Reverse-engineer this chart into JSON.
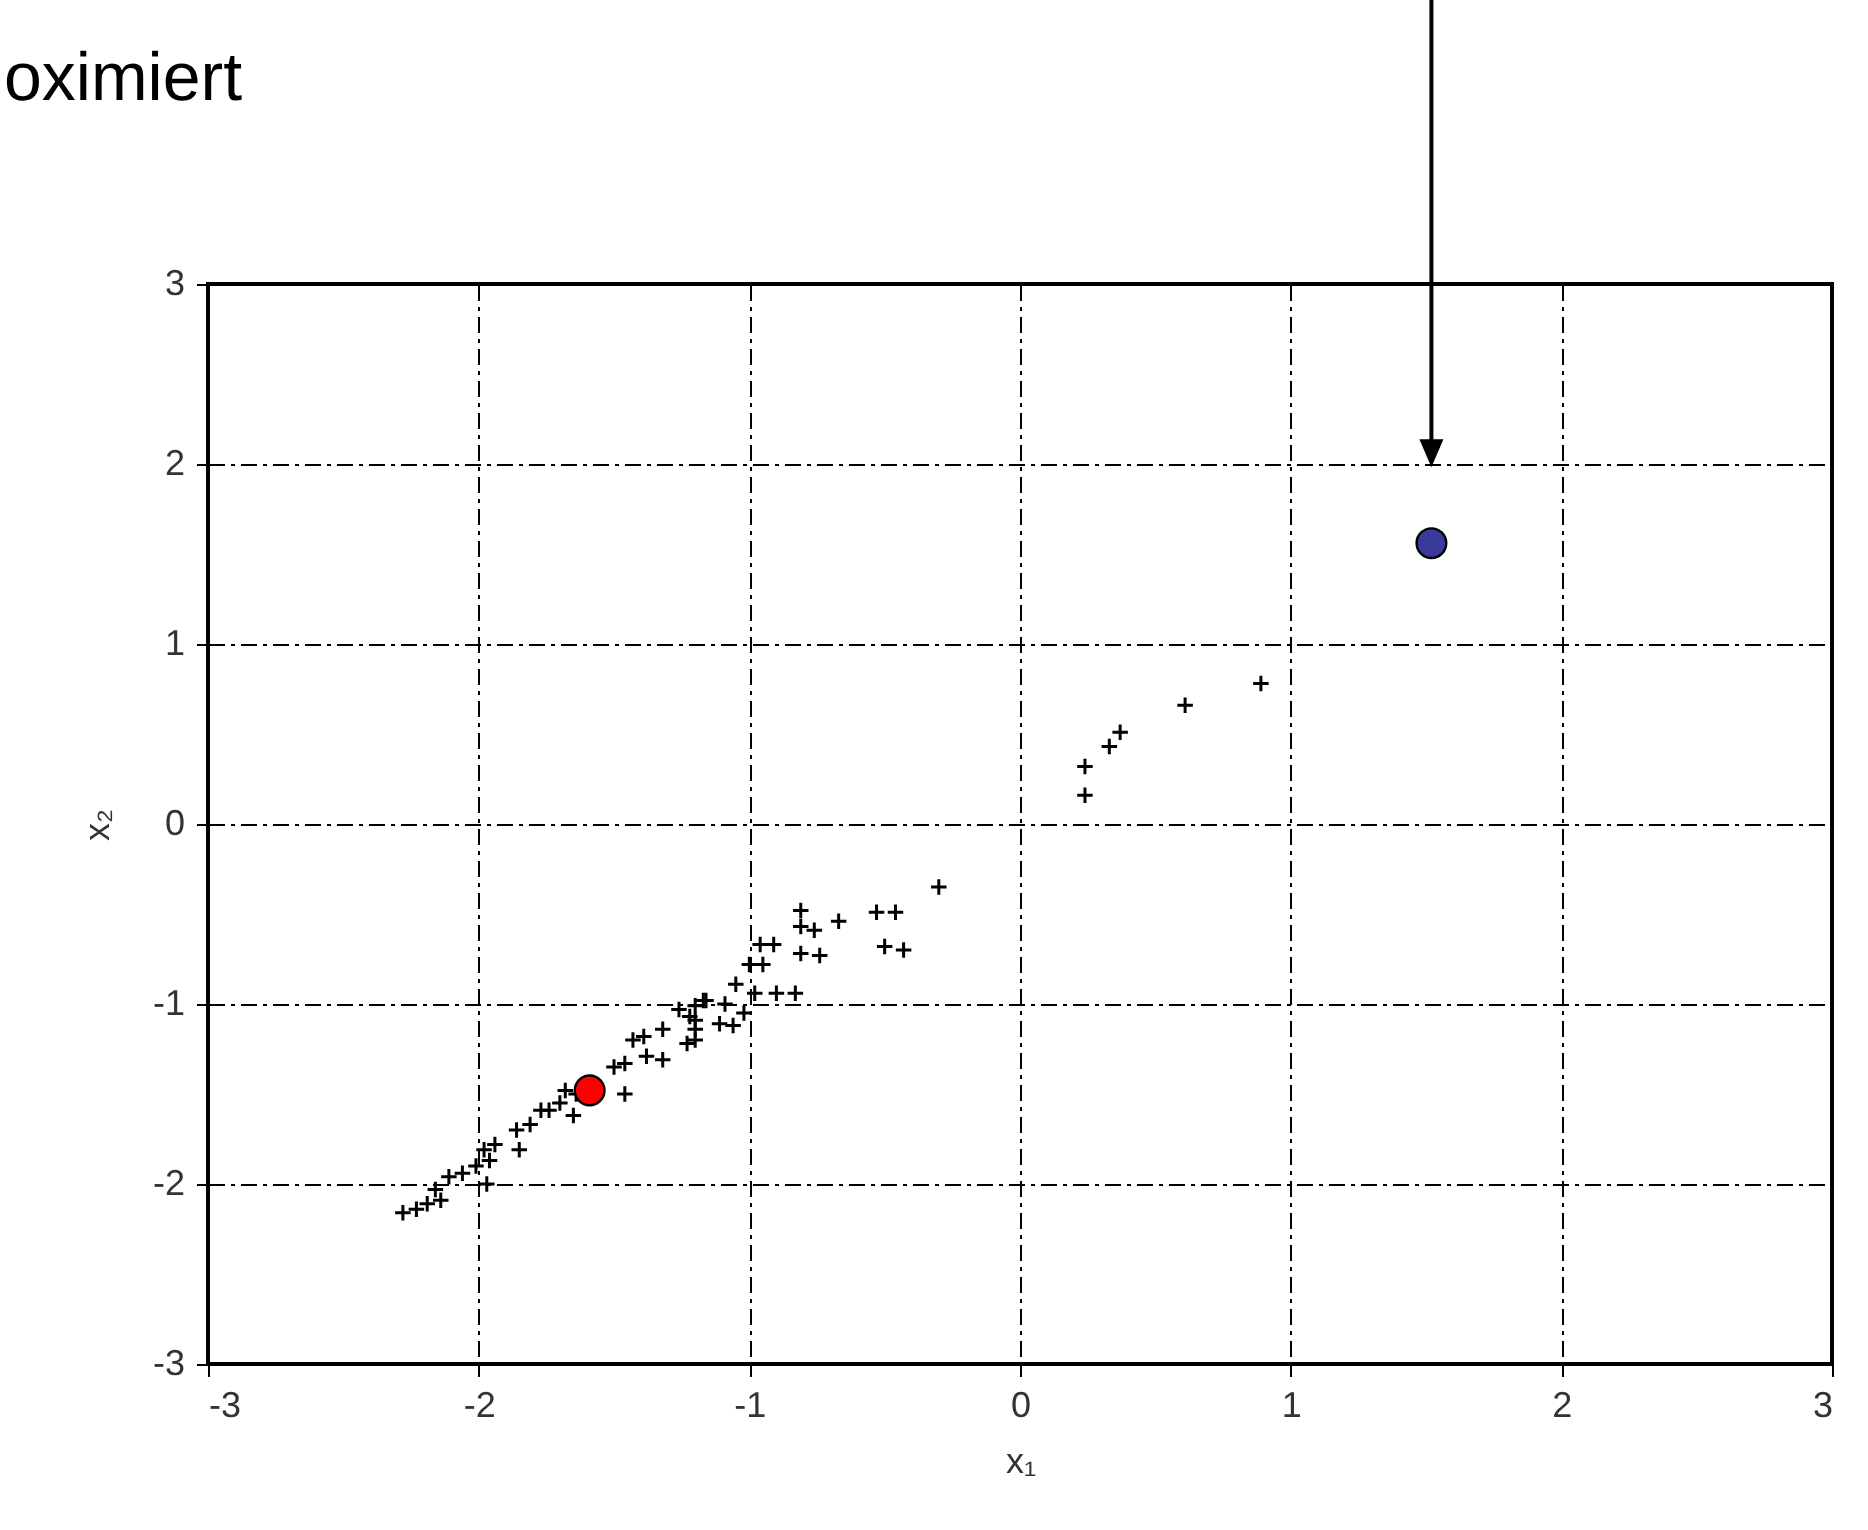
{
  "chart_data": {
    "type": "scatter",
    "xlabel": "x₁",
    "ylabel": "x₂",
    "annotations": [
      "oximiert"
    ],
    "xlim": [
      -3,
      3
    ],
    "ylim": [
      -3,
      3
    ],
    "xticks": [
      -3,
      -2,
      -1,
      0,
      1,
      2,
      3
    ],
    "yticks": [
      -3,
      -2,
      -1,
      0,
      1,
      2,
      3
    ],
    "grid": true,
    "series": [
      {
        "color": "#000000",
        "marker": "cross",
        "x": [
          -2.28,
          -2.23,
          -2.19,
          -2.16,
          -2.14,
          -2.11,
          -2.06,
          -2.01,
          -1.98,
          -1.96,
          -1.97,
          -1.94,
          -1.86,
          -1.85,
          -1.81,
          -1.77,
          -1.74,
          -1.7,
          -1.65,
          -1.64,
          -1.68,
          -1.5,
          -1.46,
          -1.46,
          -1.43,
          -1.39,
          -1.38,
          -1.32,
          -1.32,
          -1.26,
          -1.23,
          -1.2,
          -1.2,
          -1.17,
          -1.2,
          -0.3,
          -0.53,
          -0.46,
          -0.5,
          -0.43,
          -0.67,
          -0.81,
          -0.81,
          -0.76,
          -0.81,
          -0.74,
          -0.96,
          -0.91,
          -1.0,
          -0.95,
          -1.05,
          -0.98,
          -0.9,
          -0.83,
          -1.16,
          -1.09,
          -1.02,
          -1.11,
          -1.06,
          -1.22,
          -1.2,
          0.89,
          0.61,
          0.37,
          0.33,
          0.24,
          0.24
        ],
        "values": [
          -2.16,
          -2.14,
          -2.11,
          -2.03,
          -2.09,
          -1.96,
          -1.94,
          -1.9,
          -1.81,
          -1.87,
          -2.0,
          -1.78,
          -1.7,
          -1.81,
          -1.67,
          -1.59,
          -1.59,
          -1.55,
          -1.62,
          -1.5,
          -1.48,
          -1.35,
          -1.5,
          -1.33,
          -1.2,
          -1.18,
          -1.29,
          -1.31,
          -1.14,
          -1.03,
          -1.22,
          -1.14,
          -1.09,
          -0.98,
          -1.01,
          -0.35,
          -0.49,
          -0.49,
          -0.68,
          -0.7,
          -0.54,
          -0.48,
          -0.57,
          -0.59,
          -0.72,
          -0.73,
          -0.67,
          -0.67,
          -0.78,
          -0.78,
          -0.89,
          -0.94,
          -0.94,
          -0.94,
          -0.98,
          -1.0,
          -1.05,
          -1.11,
          -1.12,
          -1.07,
          -1.2,
          0.78,
          0.66,
          0.51,
          0.43,
          0.32,
          0.16
        ]
      },
      {
        "color": "#ff0000",
        "marker": "circle",
        "x": [
          -1.59
        ],
        "values": [
          -1.48
        ]
      },
      {
        "color": "#3a3a9a",
        "marker": "circle",
        "x": [
          1.52
        ],
        "values": [
          1.56
        ]
      }
    ]
  }
}
